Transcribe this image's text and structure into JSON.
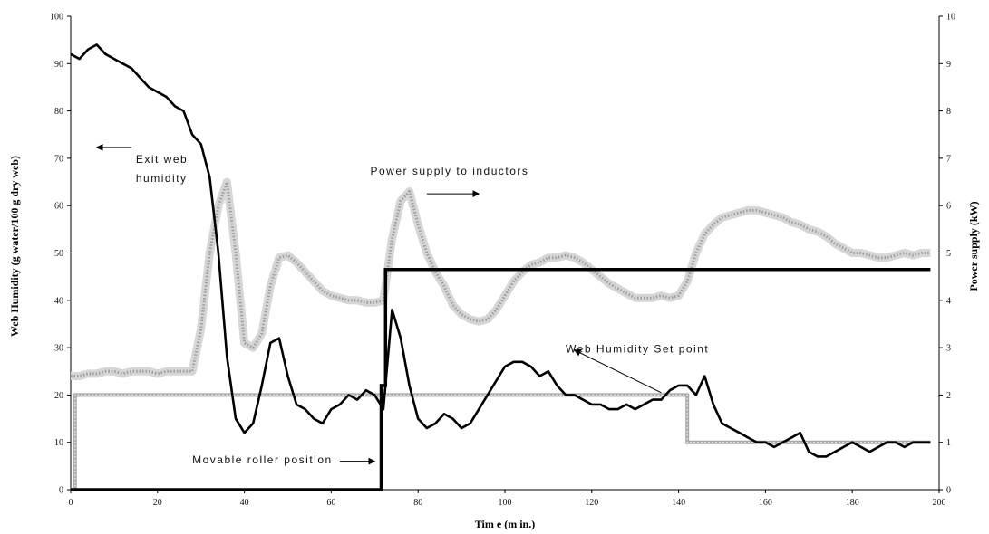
{
  "chart_data": {
    "type": "line",
    "title": "",
    "xlabel": "Tim e (m in.)",
    "ylabel": "Web Humidity (g water/100 g dry web)",
    "y2label": "Power supply (kW)",
    "xlim": [
      0,
      200
    ],
    "ylim": [
      0,
      100
    ],
    "y2lim": [
      0,
      10
    ],
    "x_ticks": [
      0,
      20,
      40,
      60,
      80,
      100,
      120,
      140,
      160,
      180,
      200
    ],
    "y_ticks": [
      0,
      10,
      20,
      30,
      40,
      50,
      60,
      70,
      80,
      90,
      100
    ],
    "y2_ticks": [
      0,
      1,
      2,
      3,
      4,
      5,
      6,
      7,
      8,
      9,
      10
    ],
    "grid": false,
    "legend": "none",
    "series": [
      {
        "axis": "left",
        "color": "#000000",
        "style": "solid-thick-noisy",
        "x": [
          0,
          2,
          4,
          6,
          8,
          10,
          12,
          14,
          16,
          18,
          20,
          22,
          24,
          26,
          28,
          30,
          32,
          34,
          36,
          38,
          40,
          42,
          44,
          46,
          48,
          50,
          52,
          54,
          56,
          58,
          60,
          62,
          64,
          66,
          68,
          70,
          72,
          74,
          76,
          78,
          80,
          82,
          84,
          86,
          88,
          90,
          92,
          94,
          96,
          98,
          100,
          102,
          104,
          106,
          108,
          110,
          112,
          114,
          116,
          118,
          120,
          122,
          124,
          126,
          128,
          130,
          132,
          134,
          136,
          138,
          140,
          142,
          144,
          146,
          148,
          150,
          152,
          154,
          156,
          158,
          160,
          162,
          164,
          166,
          168,
          170,
          172,
          174,
          176,
          178,
          180,
          182,
          184,
          186,
          188,
          190,
          192,
          194,
          196,
          198
        ],
        "values": [
          92,
          91,
          93,
          94,
          92,
          91,
          90,
          89,
          87,
          85,
          84,
          83,
          81,
          80,
          75,
          73,
          66,
          50,
          28,
          15,
          12,
          14,
          22,
          31,
          32,
          24,
          18,
          17,
          15,
          14,
          17,
          18,
          20,
          19,
          21,
          20,
          17,
          38,
          32,
          22,
          15,
          13,
          14,
          16,
          15,
          13,
          14,
          17,
          20,
          23,
          26,
          27,
          27,
          26,
          24,
          25,
          22,
          20,
          20,
          19,
          18,
          18,
          17,
          17,
          18,
          17,
          18,
          19,
          19,
          21,
          22,
          22,
          20,
          24,
          18,
          14,
          13,
          12,
          11,
          10,
          10,
          9,
          10,
          11,
          12,
          8,
          7,
          7,
          8,
          9,
          10,
          9,
          8,
          9,
          10,
          10,
          9,
          10,
          10,
          10
        ]
      },
      {
        "axis": "right",
        "color": "#9e9e9e",
        "style": "dotted-band-noisy",
        "x": [
          0,
          2,
          4,
          6,
          8,
          10,
          12,
          14,
          16,
          18,
          20,
          22,
          24,
          26,
          28,
          30,
          32,
          34,
          36,
          38,
          40,
          42,
          44,
          46,
          48,
          50,
          52,
          54,
          56,
          58,
          60,
          62,
          64,
          66,
          68,
          70,
          72,
          74,
          76,
          78,
          80,
          82,
          84,
          86,
          88,
          90,
          92,
          94,
          96,
          98,
          100,
          102,
          104,
          106,
          108,
          110,
          112,
          114,
          116,
          118,
          120,
          122,
          124,
          126,
          128,
          130,
          132,
          134,
          136,
          138,
          140,
          142,
          144,
          146,
          148,
          150,
          152,
          154,
          156,
          158,
          160,
          162,
          164,
          166,
          168,
          170,
          172,
          174,
          176,
          178,
          180,
          182,
          184,
          186,
          188,
          190,
          192,
          194,
          196,
          198
        ],
        "values": [
          2.4,
          2.4,
          2.45,
          2.45,
          2.5,
          2.5,
          2.45,
          2.5,
          2.5,
          2.5,
          2.45,
          2.5,
          2.5,
          2.5,
          2.5,
          3.4,
          5.0,
          6.0,
          6.5,
          5.0,
          3.1,
          3.0,
          3.3,
          4.3,
          4.9,
          4.95,
          4.8,
          4.6,
          4.4,
          4.2,
          4.1,
          4.05,
          4.0,
          4.0,
          3.95,
          3.95,
          4.0,
          5.3,
          6.1,
          6.3,
          5.6,
          5.0,
          4.6,
          4.3,
          3.9,
          3.7,
          3.6,
          3.55,
          3.6,
          3.8,
          4.1,
          4.4,
          4.6,
          4.75,
          4.8,
          4.9,
          4.9,
          4.95,
          4.9,
          4.8,
          4.65,
          4.5,
          4.35,
          4.25,
          4.15,
          4.05,
          4.05,
          4.05,
          4.1,
          4.05,
          4.1,
          4.4,
          5.0,
          5.4,
          5.6,
          5.75,
          5.8,
          5.85,
          5.9,
          5.9,
          5.85,
          5.8,
          5.75,
          5.65,
          5.6,
          5.5,
          5.45,
          5.35,
          5.2,
          5.1,
          5.0,
          5.0,
          4.95,
          4.9,
          4.9,
          4.95,
          5.0,
          4.95,
          5.0,
          5.0
        ]
      },
      {
        "axis": "left",
        "color": "#a8a8a8",
        "style": "step-thick-gray",
        "x": [
          0,
          1,
          1,
          142,
          142,
          198
        ],
        "values": [
          0,
          0,
          20,
          20,
          10,
          10
        ]
      },
      {
        "axis": "right",
        "color": "#000000",
        "style": "step-thick-black",
        "x": [
          0,
          18,
          71.5,
          71.5,
          72.5,
          72.5,
          198
        ],
        "values": [
          0,
          0,
          0,
          2.2,
          2.2,
          4.65,
          4.65
        ]
      }
    ],
    "annotations": [
      {
        "id": "exit-humidity",
        "lines": [
          "Exit web",
          "humidity"
        ],
        "text_x": 15,
        "text_y": [
          69,
          65
        ],
        "arrow_from": [
          14,
          72.3
        ],
        "arrow_to": [
          6,
          72.3
        ]
      },
      {
        "id": "power-supply",
        "lines": [
          "Power supply to inductors"
        ],
        "text_x": 69,
        "text_y": [
          66.5
        ],
        "arrow_from": [
          82,
          62.5
        ],
        "arrow_to": [
          94,
          62.5
        ]
      },
      {
        "id": "set-point",
        "lines": [
          "Web Humidity Set point"
        ],
        "text_x": 114,
        "text_y": [
          29
        ],
        "arrow_from": [
          136,
          20.5
        ],
        "arrow_to": [
          116,
          29.5
        ]
      },
      {
        "id": "roller-position",
        "lines": [
          "Movable roller position"
        ],
        "text_x": 28,
        "text_y": [
          5.5
        ],
        "arrow_from": [
          62,
          6
        ],
        "arrow_to": [
          70,
          6
        ]
      }
    ]
  }
}
